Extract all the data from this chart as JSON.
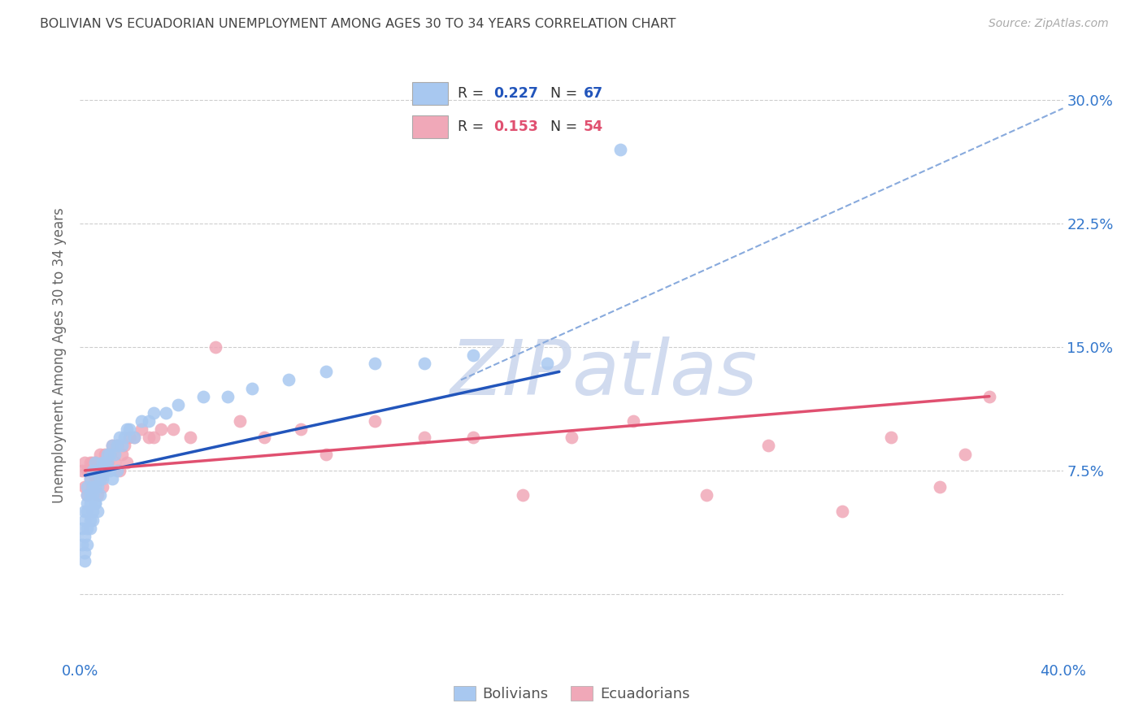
{
  "title": "BOLIVIAN VS ECUADORIAN UNEMPLOYMENT AMONG AGES 30 TO 34 YEARS CORRELATION CHART",
  "source": "Source: ZipAtlas.com",
  "ylabel": "Unemployment Among Ages 30 to 34 years",
  "xlim": [
    0.0,
    0.4
  ],
  "ylim": [
    -0.04,
    0.33
  ],
  "yticks": [
    0.0,
    0.075,
    0.15,
    0.225,
    0.3
  ],
  "ytick_labels": [
    "",
    "7.5%",
    "15.0%",
    "22.5%",
    "30.0%"
  ],
  "xticks": [
    0.0,
    0.1,
    0.2,
    0.3,
    0.4
  ],
  "xtick_labels": [
    "0.0%",
    "",
    "",
    "",
    "40.0%"
  ],
  "background_color": "#ffffff",
  "grid_color": "#c8c8c8",
  "bolivians_color": "#a8c8f0",
  "ecuadorians_color": "#f0a8b8",
  "bolivians_line_color": "#2255bb",
  "ecuadorians_line_color": "#e05070",
  "dashed_line_color": "#88aadd",
  "watermark_color": "#ccd8ee",
  "legend_R_bolivians": "0.227",
  "legend_N_bolivians": "67",
  "legend_R_ecuadorians": "0.153",
  "legend_N_ecuadorians": "54",
  "title_color": "#444444",
  "axis_label_color": "#666666",
  "tick_label_color": "#3377cc",
  "bolivians_x": [
    0.001,
    0.001,
    0.002,
    0.002,
    0.002,
    0.002,
    0.002,
    0.003,
    0.003,
    0.003,
    0.003,
    0.003,
    0.003,
    0.004,
    0.004,
    0.004,
    0.004,
    0.004,
    0.005,
    0.005,
    0.005,
    0.005,
    0.005,
    0.006,
    0.006,
    0.006,
    0.006,
    0.007,
    0.007,
    0.007,
    0.008,
    0.008,
    0.008,
    0.009,
    0.009,
    0.01,
    0.01,
    0.011,
    0.011,
    0.012,
    0.012,
    0.013,
    0.013,
    0.014,
    0.015,
    0.015,
    0.016,
    0.017,
    0.018,
    0.019,
    0.02,
    0.022,
    0.025,
    0.028,
    0.03,
    0.035,
    0.04,
    0.05,
    0.06,
    0.07,
    0.085,
    0.1,
    0.12,
    0.14,
    0.16,
    0.19,
    0.22
  ],
  "bolivians_y": [
    0.04,
    0.03,
    0.05,
    0.035,
    0.045,
    0.025,
    0.02,
    0.06,
    0.05,
    0.04,
    0.03,
    0.055,
    0.065,
    0.04,
    0.06,
    0.07,
    0.045,
    0.055,
    0.05,
    0.06,
    0.045,
    0.065,
    0.075,
    0.055,
    0.065,
    0.08,
    0.055,
    0.065,
    0.075,
    0.05,
    0.07,
    0.075,
    0.06,
    0.08,
    0.07,
    0.08,
    0.075,
    0.085,
    0.08,
    0.085,
    0.075,
    0.09,
    0.07,
    0.085,
    0.09,
    0.075,
    0.095,
    0.09,
    0.095,
    0.1,
    0.1,
    0.095,
    0.105,
    0.105,
    0.11,
    0.11,
    0.115,
    0.12,
    0.12,
    0.125,
    0.13,
    0.135,
    0.14,
    0.14,
    0.145,
    0.14,
    0.27
  ],
  "ecuadorians_x": [
    0.001,
    0.002,
    0.002,
    0.003,
    0.003,
    0.004,
    0.004,
    0.005,
    0.005,
    0.006,
    0.006,
    0.007,
    0.007,
    0.008,
    0.008,
    0.009,
    0.009,
    0.01,
    0.01,
    0.011,
    0.012,
    0.013,
    0.014,
    0.015,
    0.016,
    0.017,
    0.018,
    0.019,
    0.02,
    0.022,
    0.025,
    0.028,
    0.03,
    0.033,
    0.038,
    0.045,
    0.055,
    0.065,
    0.075,
    0.09,
    0.1,
    0.12,
    0.14,
    0.16,
    0.18,
    0.2,
    0.225,
    0.255,
    0.28,
    0.31,
    0.33,
    0.35,
    0.36,
    0.37
  ],
  "ecuadorians_y": [
    0.075,
    0.065,
    0.08,
    0.06,
    0.075,
    0.07,
    0.08,
    0.065,
    0.08,
    0.07,
    0.08,
    0.06,
    0.075,
    0.07,
    0.085,
    0.065,
    0.08,
    0.075,
    0.085,
    0.08,
    0.085,
    0.09,
    0.08,
    0.09,
    0.075,
    0.085,
    0.09,
    0.08,
    0.095,
    0.095,
    0.1,
    0.095,
    0.095,
    0.1,
    0.1,
    0.095,
    0.15,
    0.105,
    0.095,
    0.1,
    0.085,
    0.105,
    0.095,
    0.095,
    0.06,
    0.095,
    0.105,
    0.06,
    0.09,
    0.05,
    0.095,
    0.065,
    0.085,
    0.12
  ],
  "blue_line_x": [
    0.002,
    0.195
  ],
  "blue_line_y": [
    0.072,
    0.135
  ],
  "pink_line_x": [
    0.002,
    0.37
  ],
  "pink_line_y": [
    0.075,
    0.12
  ],
  "dashed_line_x": [
    0.155,
    0.4
  ],
  "dashed_line_y": [
    0.13,
    0.295
  ]
}
